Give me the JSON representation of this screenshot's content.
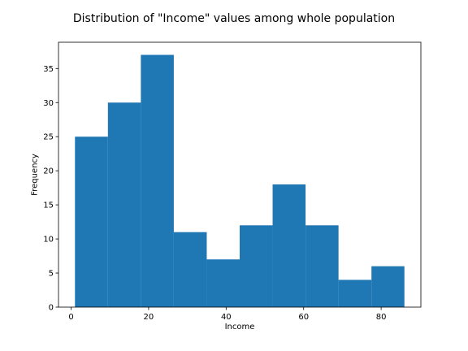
{
  "chart_data": {
    "type": "bar",
    "title": "Distribution of \"Income\" values among whole population",
    "xlabel": "Income",
    "ylabel": "Frequency",
    "bin_edges": [
      1,
      9.5,
      18,
      26.5,
      35,
      43.5,
      52,
      60.5,
      69,
      77.5,
      86
    ],
    "values": [
      25,
      30,
      37,
      11,
      7,
      12,
      18,
      12,
      4,
      6
    ],
    "xlim": [
      -3.25,
      90.25
    ],
    "ylim": [
      0,
      38.85
    ],
    "xticks": [
      0,
      20,
      40,
      60,
      80
    ],
    "yticks": [
      0,
      5,
      10,
      15,
      20,
      25,
      30,
      35
    ],
    "grid": false,
    "bar_color": "#1f77b4"
  }
}
